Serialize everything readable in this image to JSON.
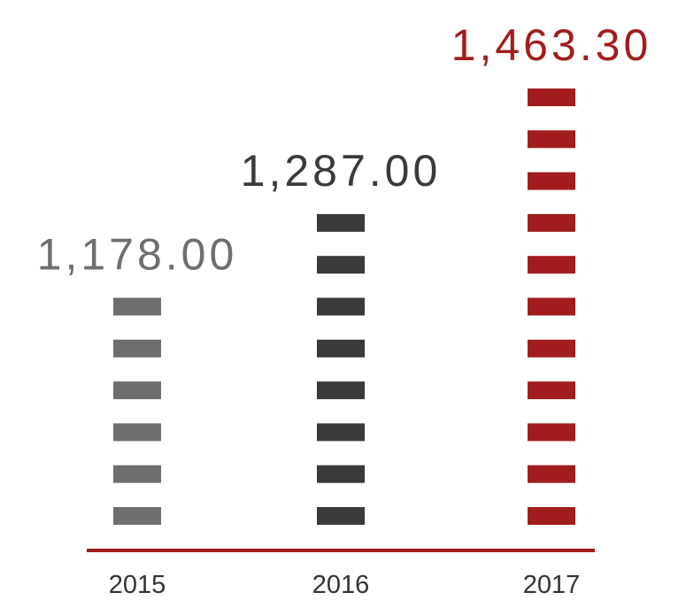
{
  "chart_data": {
    "type": "bar",
    "categories": [
      "2015",
      "2016",
      "2017"
    ],
    "values": [
      1178.0,
      1287.0,
      1463.3
    ],
    "value_labels": [
      "1,178.00",
      "1,287.00",
      "1,463.30"
    ],
    "segment_counts": [
      6,
      8,
      11
    ],
    "colors": [
      "#6e6e6e",
      "#3a3a3a",
      "#a11d1d"
    ],
    "axis_color": "#a11d1d",
    "title": "",
    "xlabel": "",
    "ylabel": "",
    "grid": false,
    "legend": "none"
  }
}
